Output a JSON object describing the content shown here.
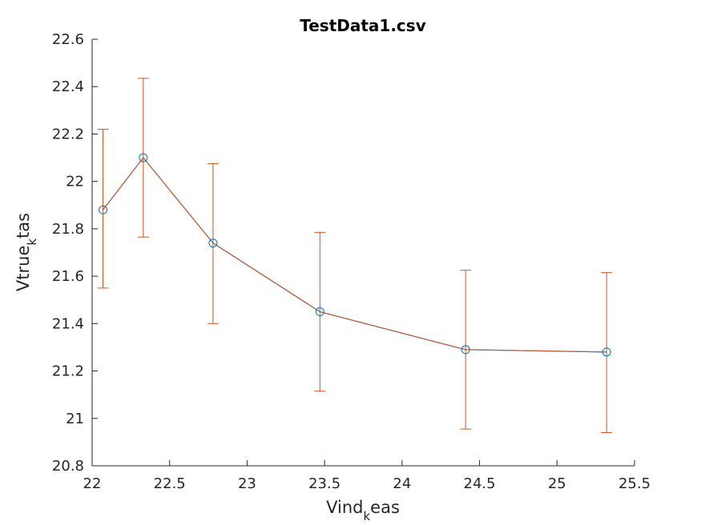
{
  "chart_data": {
    "type": "line",
    "title": "TestData1.csv",
    "xlabel": {
      "main": "Vind",
      "sub": "k",
      "rest": "eas"
    },
    "ylabel": {
      "main": "Vtrue",
      "sub": "k",
      "rest": "tas"
    },
    "xlim": [
      22,
      25.5
    ],
    "ylim": [
      20.8,
      22.6
    ],
    "xticks": [
      "22",
      "22.5",
      "23",
      "23.5",
      "24",
      "24.5",
      "25",
      "25.5"
    ],
    "yticks": [
      "20.8",
      "21",
      "21.2",
      "21.4",
      "21.6",
      "21.8",
      "22",
      "22.2",
      "22.4",
      "22.6"
    ],
    "grid": false,
    "series": [
      {
        "x": [
          22.07,
          22.33,
          22.78,
          23.47,
          24.41,
          25.32
        ],
        "y": [
          21.88,
          22.1,
          21.74,
          21.45,
          21.29,
          21.28
        ],
        "err_low": [
          21.55,
          21.765,
          21.4,
          21.115,
          20.955,
          20.94
        ],
        "err_high": [
          22.22,
          22.435,
          22.075,
          21.785,
          21.625,
          21.615
        ]
      }
    ],
    "colors": {
      "markers": "#0072BD",
      "line": "#D95319",
      "axes": "#262626"
    }
  }
}
